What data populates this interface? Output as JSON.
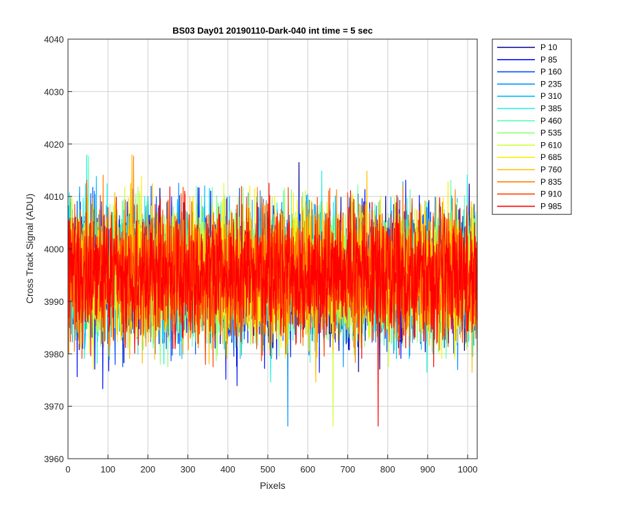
{
  "chart_data": {
    "type": "line",
    "title": "BS03 Day01 20190110-Dark-040 int time = 5 sec",
    "xlabel": "Pixels",
    "ylabel": "Cross Track Signal (ADU)",
    "xlim": [
      0,
      1024
    ],
    "ylim": [
      3960,
      4040
    ],
    "xticks": [
      0,
      100,
      200,
      300,
      400,
      500,
      600,
      700,
      800,
      900,
      1000
    ],
    "yticks": [
      3960,
      3970,
      3980,
      3990,
      4000,
      4010,
      4020,
      4030,
      4040
    ],
    "grid": true,
    "legend_position": "outside-top-right",
    "n_pixels": 1024,
    "baseline_mean": 3995,
    "noise_std": 6,
    "series": [
      {
        "name": "P 10",
        "color": "#00008f"
      },
      {
        "name": "P 85",
        "color": "#0010ff"
      },
      {
        "name": "P 160",
        "color": "#0050ff"
      },
      {
        "name": "P 235",
        "color": "#0090ff"
      },
      {
        "name": "P 310",
        "color": "#00bfff"
      },
      {
        "name": "P 385",
        "color": "#20efdf"
      },
      {
        "name": "P 460",
        "color": "#60ffb0"
      },
      {
        "name": "P 535",
        "color": "#90ff70"
      },
      {
        "name": "P 610",
        "color": "#cfff30"
      },
      {
        "name": "P 685",
        "color": "#ffef00"
      },
      {
        "name": "P 760",
        "color": "#ffbf00"
      },
      {
        "name": "P 835",
        "color": "#ff8000"
      },
      {
        "name": "P 910",
        "color": "#ff4000"
      },
      {
        "name": "P 985",
        "color": "#ff0000"
      }
    ]
  }
}
